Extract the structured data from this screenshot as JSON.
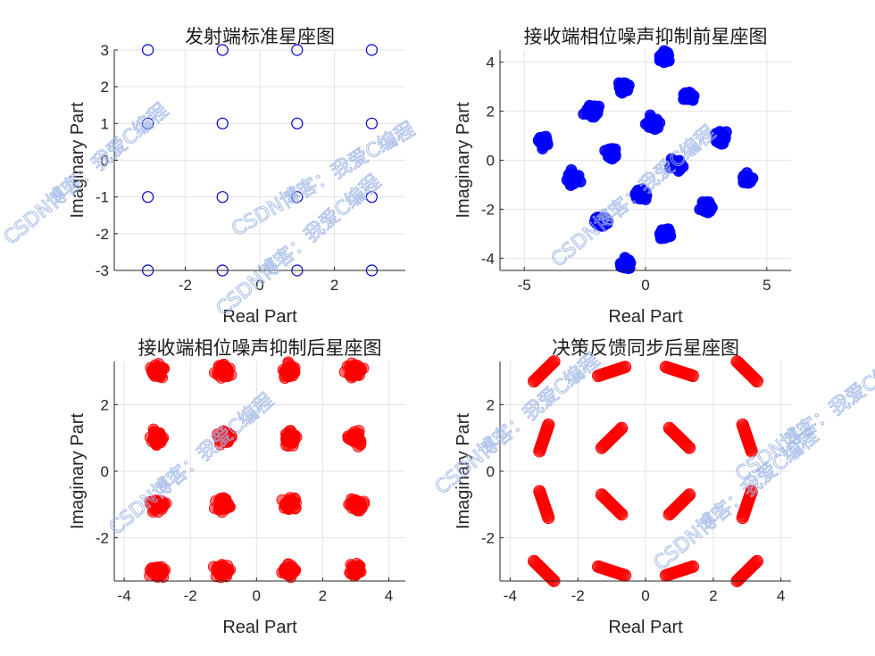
{
  "watermark": "CSDN博客：我爱C编程",
  "chart_data": [
    {
      "type": "scatter",
      "title": "发射端标准星座图",
      "xlabel": "Real Part",
      "ylabel": "Imaginary Part",
      "xlim": [
        -3.9,
        3.9
      ],
      "ylim": [
        -3,
        3
      ],
      "xticks": [
        -2,
        0,
        2
      ],
      "yticks": [
        -3,
        -2,
        -1,
        0,
        1,
        2,
        3
      ],
      "grid": true,
      "marker": "open-circle",
      "color": "#0000cc",
      "points": [
        [
          -3,
          3
        ],
        [
          -1,
          3
        ],
        [
          1,
          3
        ],
        [
          3,
          3
        ],
        [
          -3,
          1
        ],
        [
          -1,
          1
        ],
        [
          1,
          1
        ],
        [
          3,
          1
        ],
        [
          -3,
          -1
        ],
        [
          -1,
          -1
        ],
        [
          1,
          -1
        ],
        [
          3,
          -1
        ],
        [
          -3,
          -3
        ],
        [
          -1,
          -3
        ],
        [
          1,
          -3
        ],
        [
          3,
          -3
        ]
      ]
    },
    {
      "type": "scatter",
      "title": "接收端相位噪声抑制前星座图",
      "xlabel": "Real Part",
      "ylabel": "Imaginary Part",
      "xlim": [
        -6,
        6
      ],
      "ylim": [
        -4.5,
        4.5
      ],
      "xticks": [
        -5,
        0,
        5
      ],
      "yticks": [
        -4,
        -2,
        0,
        2,
        4
      ],
      "grid": true,
      "marker": "cluster",
      "color": "#0000ff",
      "points": [
        [
          0.8,
          4.2
        ],
        [
          -0.9,
          3.0
        ],
        [
          1.8,
          2.6
        ],
        [
          -2.2,
          2.0
        ],
        [
          0.3,
          1.5
        ],
        [
          3.1,
          0.9
        ],
        [
          -4.2,
          0.8
        ],
        [
          -1.4,
          0.3
        ],
        [
          1.3,
          -0.2
        ],
        [
          -3.0,
          -0.8
        ],
        [
          -0.2,
          -1.4
        ],
        [
          4.2,
          -0.8
        ],
        [
          -1.8,
          -2.5
        ],
        [
          2.5,
          -1.9
        ],
        [
          0.8,
          -3.0
        ],
        [
          -0.8,
          -4.2
        ]
      ]
    },
    {
      "type": "scatter",
      "title": "接收端相位噪声抑制后星座图",
      "xlabel": "Real Part",
      "ylabel": "Imaginary Part",
      "xlim": [
        -4.3,
        4.5
      ],
      "ylim": [
        -3.3,
        3.3
      ],
      "xticks": [
        -4,
        -2,
        0,
        2,
        4
      ],
      "yticks": [
        -2,
        0,
        2
      ],
      "grid": true,
      "marker": "cluster",
      "color": "#ff0000",
      "points": [
        [
          -3,
          3
        ],
        [
          -1,
          3
        ],
        [
          1,
          3
        ],
        [
          3,
          3
        ],
        [
          -3,
          1
        ],
        [
          -1,
          1
        ],
        [
          1,
          1
        ],
        [
          3,
          1
        ],
        [
          -3,
          -1
        ],
        [
          -1,
          -1
        ],
        [
          1,
          -1
        ],
        [
          3,
          -1
        ],
        [
          -3,
          -3
        ],
        [
          -1,
          -3
        ],
        [
          1,
          -3
        ],
        [
          3,
          -3
        ]
      ]
    },
    {
      "type": "scatter",
      "title": "决策反馈同步后星座图",
      "xlabel": "Real Part",
      "ylabel": "Imaginary Part",
      "xlim": [
        -4.3,
        4.3
      ],
      "ylim": [
        -3.3,
        3.3
      ],
      "xticks": [
        -4,
        -2,
        0,
        2,
        4
      ],
      "yticks": [
        -2,
        0,
        2
      ],
      "grid": true,
      "marker": "arc",
      "color": "#ff0000",
      "points": [
        [
          -3,
          3
        ],
        [
          -1,
          3
        ],
        [
          1,
          3
        ],
        [
          3,
          3
        ],
        [
          -3,
          1
        ],
        [
          -1,
          1
        ],
        [
          1,
          1
        ],
        [
          3,
          1
        ],
        [
          -3,
          -1
        ],
        [
          -1,
          -1
        ],
        [
          1,
          -1
        ],
        [
          3,
          -1
        ],
        [
          -3,
          -3
        ],
        [
          -1,
          -3
        ],
        [
          1,
          -3
        ],
        [
          3,
          -3
        ]
      ]
    }
  ]
}
